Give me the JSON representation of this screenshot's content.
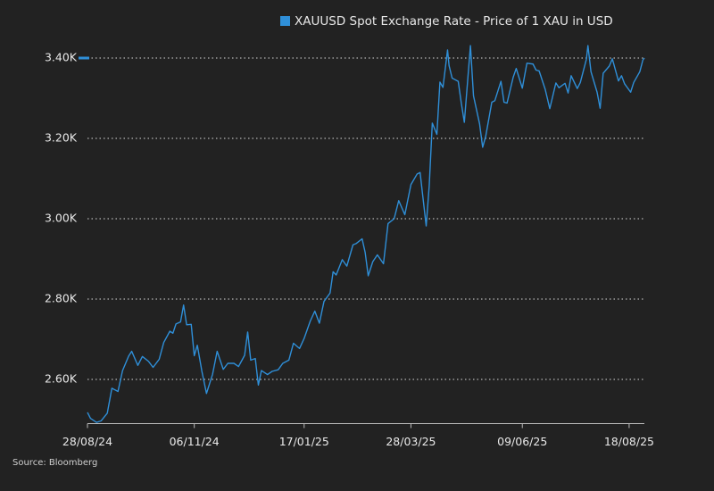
{
  "chart_data": {
    "type": "line",
    "legend": "XAUUSD Spot Exchange Rate - Price of 1 XAU in USD",
    "source": "Source: Bloomberg",
    "color": "#2f8fd8",
    "grid": true,
    "xlim": [
      "2024-08-28",
      "2025-08-28"
    ],
    "xticks": [
      {
        "value": "2024-08-28",
        "label": "28/08/24"
      },
      {
        "value": "2024-11-06",
        "label": "06/11/24"
      },
      {
        "value": "2025-01-17",
        "label": "17/01/25"
      },
      {
        "value": "2025-03-28",
        "label": "28/03/25"
      },
      {
        "value": "2025-06-09",
        "label": "09/06/25"
      },
      {
        "value": "2025-08-18",
        "label": "18/08/25"
      }
    ],
    "ylim": [
      2490,
      3460
    ],
    "yticks": [
      {
        "value": 2600,
        "label": "2.60K"
      },
      {
        "value": 2800,
        "label": "2.80K"
      },
      {
        "value": 3000,
        "label": "3.00K"
      },
      {
        "value": 3200,
        "label": "3.20K"
      },
      {
        "value": 3400,
        "label": "3.40K"
      }
    ],
    "x": [
      "2024-08-28",
      "2024-08-30",
      "2024-09-03",
      "2024-09-06",
      "2024-09-10",
      "2024-09-13",
      "2024-09-17",
      "2024-09-20",
      "2024-09-24",
      "2024-09-26",
      "2024-09-30",
      "2024-10-03",
      "2024-10-07",
      "2024-10-10",
      "2024-10-14",
      "2024-10-17",
      "2024-10-21",
      "2024-10-23",
      "2024-10-25",
      "2024-10-28",
      "2024-10-30",
      "2024-11-01",
      "2024-11-04",
      "2024-11-06",
      "2024-11-08",
      "2024-11-11",
      "2024-11-14",
      "2024-11-18",
      "2024-11-21",
      "2024-11-25",
      "2024-11-28",
      "2024-12-02",
      "2024-12-05",
      "2024-12-09",
      "2024-12-11",
      "2024-12-13",
      "2024-12-16",
      "2024-12-18",
      "2024-12-20",
      "2024-12-24",
      "2024-12-27",
      "2024-12-31",
      "2025-01-03",
      "2025-01-07",
      "2025-01-10",
      "2025-01-14",
      "2025-01-17",
      "2025-01-21",
      "2025-01-24",
      "2025-01-27",
      "2025-01-30",
      "2025-02-03",
      "2025-02-05",
      "2025-02-07",
      "2025-02-11",
      "2025-02-14",
      "2025-02-18",
      "2025-02-20",
      "2025-02-24",
      "2025-02-26",
      "2025-02-28",
      "2025-03-03",
      "2025-03-06",
      "2025-03-10",
      "2025-03-13",
      "2025-03-17",
      "2025-03-20",
      "2025-03-24",
      "2025-03-28",
      "2025-04-01",
      "2025-04-03",
      "2025-04-07",
      "2025-04-09",
      "2025-04-11",
      "2025-04-14",
      "2025-04-16",
      "2025-04-18",
      "2025-04-21",
      "2025-04-22",
      "2025-04-24",
      "2025-04-28",
      "2025-04-30",
      "2025-05-02",
      "2025-05-06",
      "2025-05-08",
      "2025-05-12",
      "2025-05-14",
      "2025-05-16",
      "2025-05-20",
      "2025-05-22",
      "2025-05-26",
      "2025-05-28",
      "2025-05-30",
      "2025-06-03",
      "2025-06-05",
      "2025-06-09",
      "2025-06-12",
      "2025-06-16",
      "2025-06-18",
      "2025-06-20",
      "2025-06-24",
      "2025-06-27",
      "2025-07-01",
      "2025-07-03",
      "2025-07-07",
      "2025-07-09",
      "2025-07-11",
      "2025-07-15",
      "2025-07-17",
      "2025-07-21",
      "2025-07-22",
      "2025-07-24",
      "2025-07-28",
      "2025-07-30",
      "2025-08-01",
      "2025-08-05",
      "2025-08-07",
      "2025-08-11",
      "2025-08-13",
      "2025-08-15",
      "2025-08-19",
      "2025-08-21",
      "2025-08-25",
      "2025-08-27",
      "2025-08-28"
    ],
    "values": [
      2518,
      2503,
      2493,
      2497,
      2516,
      2578,
      2570,
      2622,
      2658,
      2670,
      2635,
      2657,
      2645,
      2630,
      2650,
      2692,
      2720,
      2715,
      2738,
      2743,
      2785,
      2736,
      2737,
      2659,
      2685,
      2620,
      2565,
      2613,
      2670,
      2625,
      2640,
      2640,
      2632,
      2660,
      2718,
      2648,
      2652,
      2586,
      2622,
      2612,
      2620,
      2624,
      2640,
      2648,
      2690,
      2677,
      2702,
      2745,
      2770,
      2740,
      2794,
      2815,
      2868,
      2860,
      2898,
      2882,
      2935,
      2938,
      2950,
      2916,
      2858,
      2893,
      2910,
      2888,
      2988,
      3000,
      3045,
      3010,
      3085,
      3111,
      3115,
      2982,
      3083,
      3238,
      3210,
      3340,
      3327,
      3420,
      3381,
      3350,
      3342,
      3288,
      3240,
      3431,
      3306,
      3236,
      3178,
      3205,
      3290,
      3294,
      3342,
      3290,
      3288,
      3352,
      3374,
      3325,
      3387,
      3385,
      3370,
      3368,
      3322,
      3274,
      3338,
      3326,
      3337,
      3313,
      3356,
      3324,
      3339,
      3397,
      3431,
      3366,
      3315,
      3275,
      3362,
      3380,
      3398,
      3343,
      3356,
      3336,
      3315,
      3339,
      3366,
      3395,
      3400
    ]
  }
}
